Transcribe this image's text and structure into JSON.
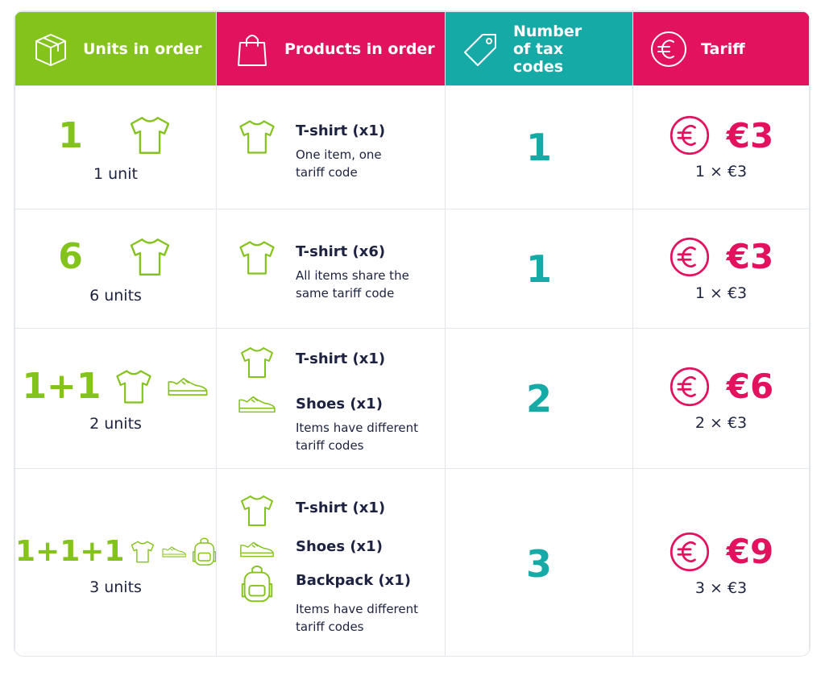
{
  "header": [
    "Units in order",
    "Products in order",
    "Number of tax codes",
    "Tariff"
  ],
  "rows": [
    {
      "units_count": "1",
      "units_label": "1 unit",
      "products": [
        "T-shirt (x1)"
      ],
      "note": "One item, one tariff code",
      "tax_codes": 1,
      "tariff": "€3",
      "formula": "1 × €3"
    },
    {
      "units_count": "6",
      "units_label": "6 units",
      "products": [
        "T-shirt (x6)"
      ],
      "note": "All items share the same tariff code",
      "tax_codes": 1,
      "tariff": "€3",
      "formula": "1 × €3"
    },
    {
      "units_count": "1+1",
      "units_label": "2 units",
      "products": [
        "T-shirt (x1)",
        "Shoes (x1)"
      ],
      "note": "Items have different tariff codes",
      "tax_codes": 2,
      "tariff": "€6",
      "formula": "2 × €3"
    },
    {
      "units_count": "1+1+1",
      "units_label": "3 units",
      "products": [
        "T-shirt (x1)",
        "Shoes (x1)",
        "Backpack (x1)"
      ],
      "note": "Items have different tariff codes",
      "tax_codes": 3,
      "tariff": "€9",
      "formula": "3 × €3"
    }
  ]
}
